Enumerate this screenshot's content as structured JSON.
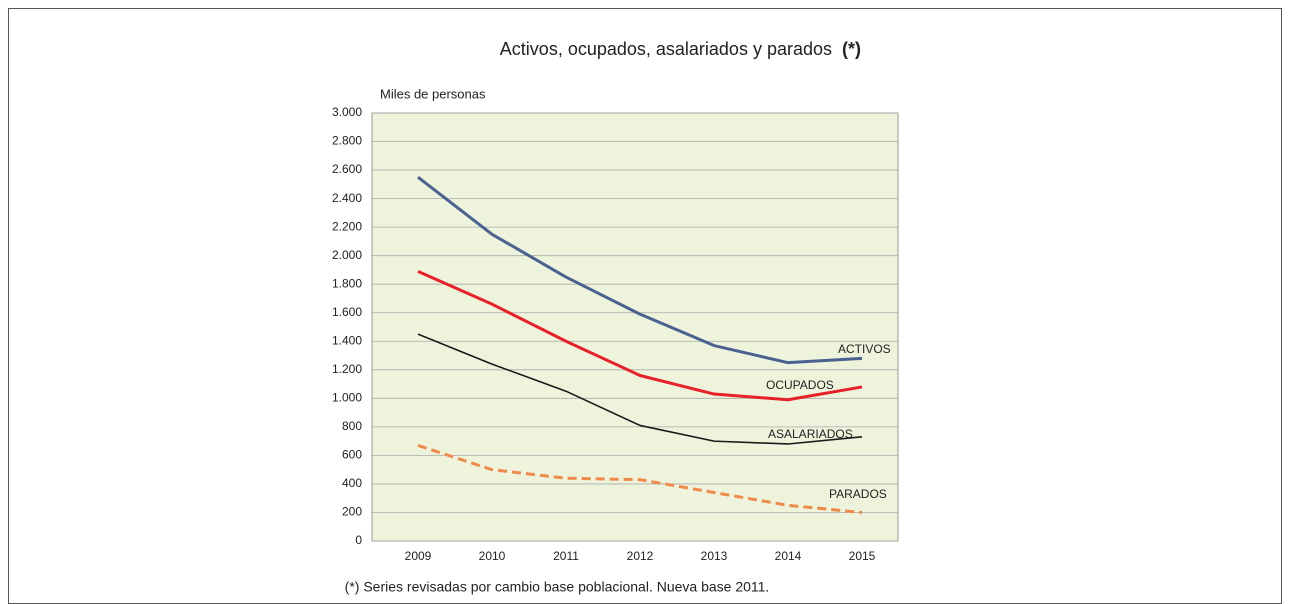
{
  "chart_data": {
    "type": "line",
    "title": "Activos, ocupados, asalariados y parados",
    "title_note": "(*)",
    "y_axis_label": "Miles de personas",
    "footnote": "(*) Series revisadas por cambio base poblacional. Nueva base 2011.",
    "categories": [
      "2009",
      "2010",
      "2011",
      "2012",
      "2013",
      "2014",
      "2015"
    ],
    "series": [
      {
        "name": "ACTIVOS",
        "color": "#4a6191",
        "values": [
          2550,
          2150,
          1850,
          1590,
          1370,
          1250,
          1280
        ]
      },
      {
        "name": "OCUPADOS",
        "color": "#e8202a",
        "values": [
          1890,
          1660,
          1400,
          1160,
          1030,
          990,
          1080
        ]
      },
      {
        "name": "ASALARIADOS",
        "color": "#1a1a1a",
        "values": [
          1450,
          1240,
          1050,
          810,
          700,
          680,
          730
        ]
      },
      {
        "name": "PARADOS",
        "color": "#f08a4b",
        "dashed": true,
        "values": [
          670,
          500,
          440,
          430,
          340,
          250,
          200
        ]
      }
    ],
    "ylim": [
      0,
      3000
    ],
    "yticks": [
      0,
      200,
      400,
      600,
      800,
      {
        "value": 1000,
        "label": "1.000"
      },
      {
        "value": 1200,
        "label": "1.200"
      },
      {
        "value": 1400,
        "label": "1.400"
      },
      {
        "value": 1600,
        "label": "1.600"
      },
      {
        "value": 1800,
        "label": "1.800"
      },
      {
        "value": 2000,
        "label": "2.000"
      },
      {
        "value": 2200,
        "label": "2.200"
      },
      {
        "value": 2400,
        "label": "2.400"
      },
      {
        "value": 2600,
        "label": "2.600"
      },
      {
        "value": 2800,
        "label": "2.800"
      },
      {
        "value": 3000,
        "label": "3.000"
      }
    ],
    "grid": true
  }
}
